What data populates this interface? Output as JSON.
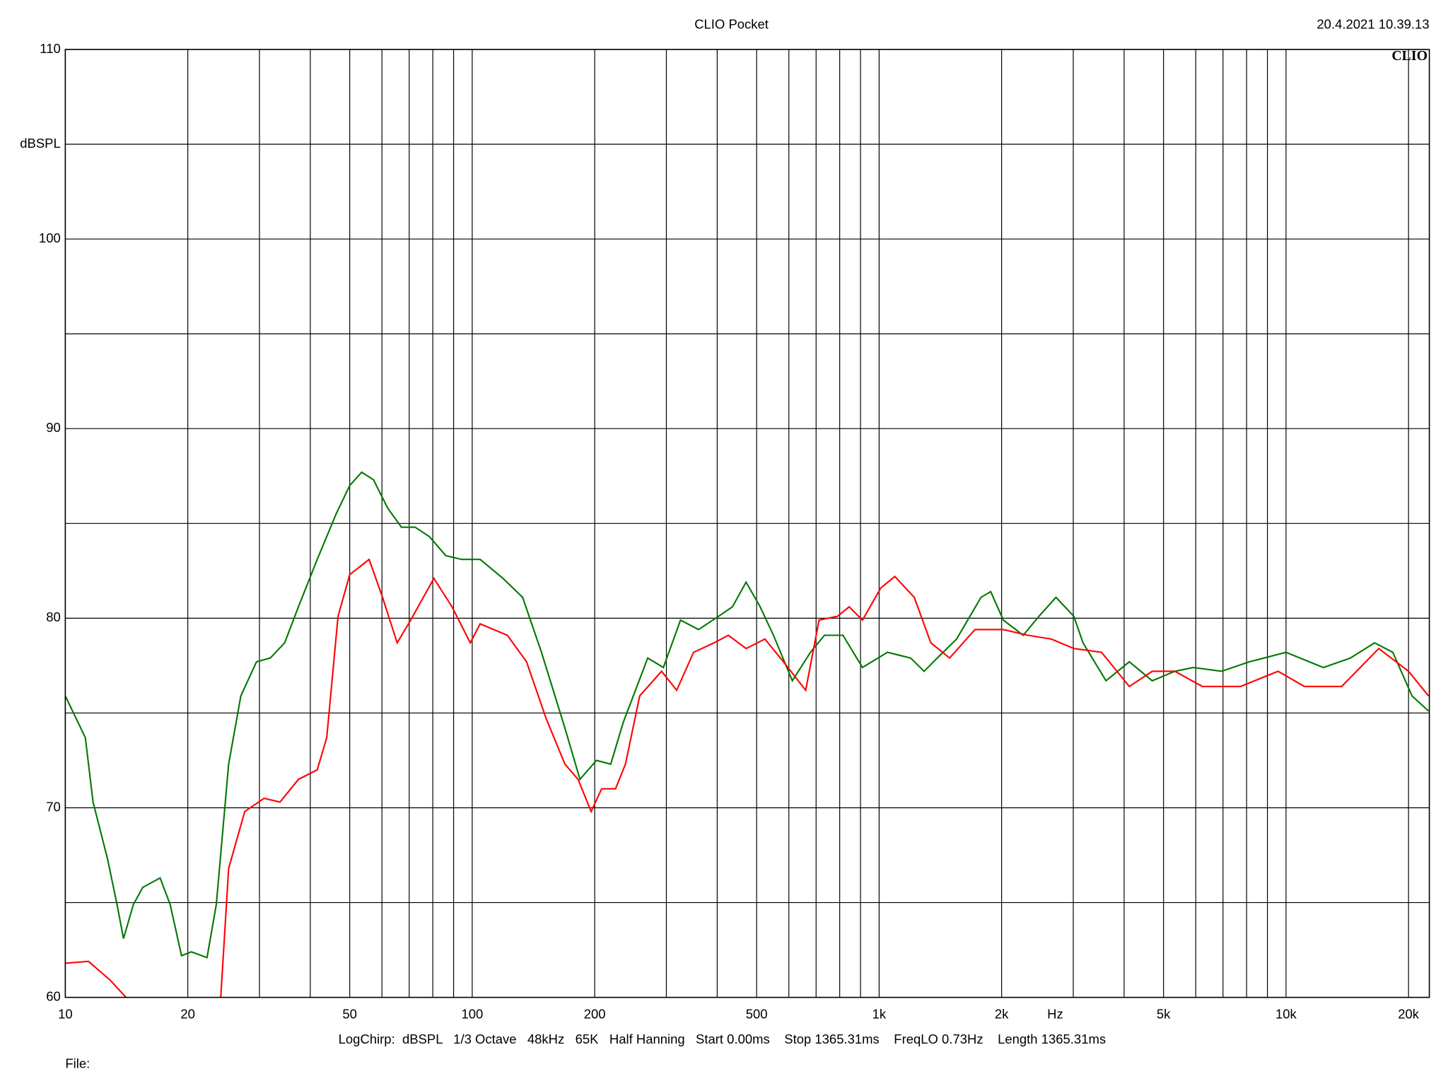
{
  "chart_data": {
    "type": "line",
    "title": "CLIO Pocket",
    "timestamp": "20.4.2021 10.39.13",
    "logo": "CLIO",
    "x_unit_label": "Hz",
    "footer": "LogChirp:  dBSPL   1/3 Octave   48kHz   65K   Half Hanning   Start 0.00ms    Stop 1365.31ms    FreqLO 0.73Hz    Length 1365.31ms",
    "file_label": "File:",
    "xscale": "log",
    "xlim": [
      10,
      22500
    ],
    "ylim": [
      60,
      110
    ],
    "grid": true,
    "xticks": [
      10,
      20,
      50,
      100,
      200,
      500,
      {
        "value": 1000,
        "label": "1k"
      },
      {
        "value": 2000,
        "label": "2k"
      },
      {
        "value": 5000,
        "label": "5k"
      },
      {
        "value": 10000,
        "label": "10k"
      },
      {
        "value": 20000,
        "label": "20k"
      }
    ],
    "xminor": [
      30,
      40,
      60,
      70,
      80,
      90,
      300,
      400,
      600,
      700,
      800,
      900,
      3000,
      4000,
      6000,
      7000,
      8000,
      9000
    ],
    "yticks": [
      60,
      70,
      80,
      90,
      100,
      {
        "value": 105,
        "label": "dBSPL"
      },
      110
    ],
    "yminor": [
      65,
      75,
      85,
      95
    ],
    "series": [
      {
        "name": "green",
        "color": "#007800",
        "x": [
          10,
          11.2,
          11.7,
          12.7,
          13.4,
          13.9,
          14.7,
          15.5,
          17.1,
          18.1,
          19.3,
          20.4,
          22.3,
          23.5,
          25.2,
          27,
          29.5,
          31.9,
          34.6,
          37.4,
          41.6,
          46.3,
          50,
          53.5,
          57.2,
          62,
          67,
          72.4,
          78.5,
          86.1,
          94.2,
          104.6,
          119,
          133,
          148,
          169,
          184,
          202,
          219,
          235,
          270,
          295,
          325,
          360,
          403,
          436,
          471,
          510,
          550,
          612,
          678,
          734,
          815,
          910,
          1048,
          1195,
          1290,
          1390,
          1550,
          1780,
          1880,
          2020,
          2260,
          2470,
          2720,
          3010,
          3170,
          3610,
          4120,
          4690,
          5330,
          5920,
          6940,
          8130,
          10000,
          12350,
          14400,
          16500,
          18300,
          20400,
          22400
        ],
        "values": [
          75.9,
          73.7,
          70.3,
          67.3,
          64.9,
          63.1,
          64.9,
          65.8,
          66.3,
          64.9,
          62.2,
          62.4,
          62.1,
          64.9,
          72.3,
          75.9,
          77.7,
          77.9,
          78.7,
          80.6,
          83.1,
          85.5,
          87.0,
          87.7,
          87.3,
          85.8,
          84.8,
          84.8,
          84.3,
          83.3,
          83.1,
          83.1,
          82.1,
          81.1,
          78.2,
          74.2,
          71.5,
          72.5,
          72.3,
          74.5,
          77.9,
          77.4,
          79.9,
          79.4,
          80.1,
          80.6,
          81.9,
          80.6,
          79.1,
          76.7,
          78.2,
          79.1,
          79.1,
          77.4,
          78.2,
          77.9,
          77.2,
          77.9,
          78.9,
          81.1,
          81.4,
          79.9,
          79.1,
          80.1,
          81.1,
          80.1,
          78.7,
          76.7,
          77.7,
          76.7,
          77.2,
          77.4,
          77.2,
          77.7,
          78.2,
          77.4,
          77.9,
          78.7,
          78.2,
          75.9,
          75.1
        ]
      },
      {
        "name": "red",
        "color": "#ff0000",
        "x": [
          10,
          11.4,
          12.9,
          14.1,
          18,
          24.1,
          25.2,
          27.6,
          30.8,
          33.7,
          37.4,
          41.6,
          43.9,
          46.8,
          50,
          55.8,
          60.2,
          65.4,
          70.6,
          80.5,
          89.2,
          98.9,
          104.6,
          122,
          136,
          152,
          169,
          182,
          196,
          208,
          225,
          238,
          258,
          292,
          318,
          350,
          393,
          426,
          471,
          524,
          582,
          660,
          712,
          790,
          844,
          910,
          1010,
          1093,
          1220,
          1340,
          1490,
          1720,
          2020,
          2320,
          2650,
          3010,
          3520,
          4120,
          4690,
          5330,
          6230,
          7730,
          9560,
          11100,
          13700,
          16900,
          20000,
          22400
        ],
        "values": [
          61.8,
          61.9,
          60.9,
          60.0,
          null,
          60.0,
          66.8,
          69.8,
          70.5,
          70.3,
          71.5,
          72.0,
          73.7,
          80.1,
          82.3,
          83.1,
          81.1,
          78.7,
          79.9,
          82.1,
          80.6,
          78.7,
          79.7,
          79.1,
          77.7,
          74.7,
          72.3,
          71.5,
          69.8,
          71.0,
          71.0,
          72.3,
          75.9,
          77.2,
          76.2,
          78.2,
          78.7,
          79.1,
          78.4,
          78.9,
          77.7,
          76.2,
          79.9,
          80.1,
          80.6,
          79.9,
          81.6,
          82.2,
          81.1,
          78.7,
          77.9,
          79.4,
          79.4,
          79.1,
          78.9,
          78.4,
          78.2,
          76.4,
          77.2,
          77.2,
          76.4,
          76.4,
          77.2,
          76.4,
          76.4,
          78.4,
          77.2,
          75.9
        ]
      }
    ]
  }
}
